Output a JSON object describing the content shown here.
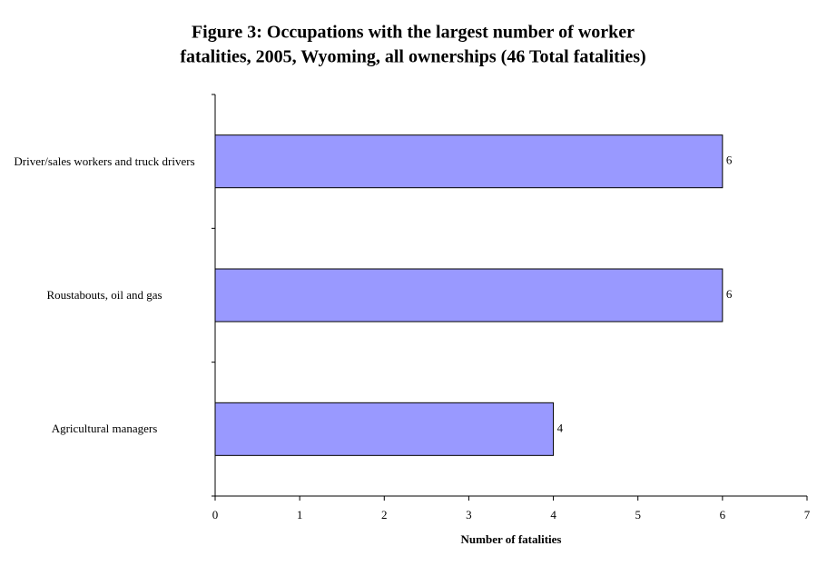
{
  "chart_data": {
    "type": "barh",
    "title": [
      "Figure 3: Occupations with the largest number of worker",
      "fatalities, 2005, Wyoming, all ownerships (46 Total fatalities)"
    ],
    "x_label": "Number of fatalities",
    "categories": [
      "Driver/sales workers and truck drivers",
      "Roustabouts, oil and gas",
      "Agricultural managers"
    ],
    "values": [
      6,
      6,
      4
    ],
    "color": "#9999ff",
    "xlim": [
      0,
      7
    ],
    "xticks": [
      0,
      1,
      2,
      3,
      4,
      5,
      6,
      7
    ],
    "grid": false
  }
}
